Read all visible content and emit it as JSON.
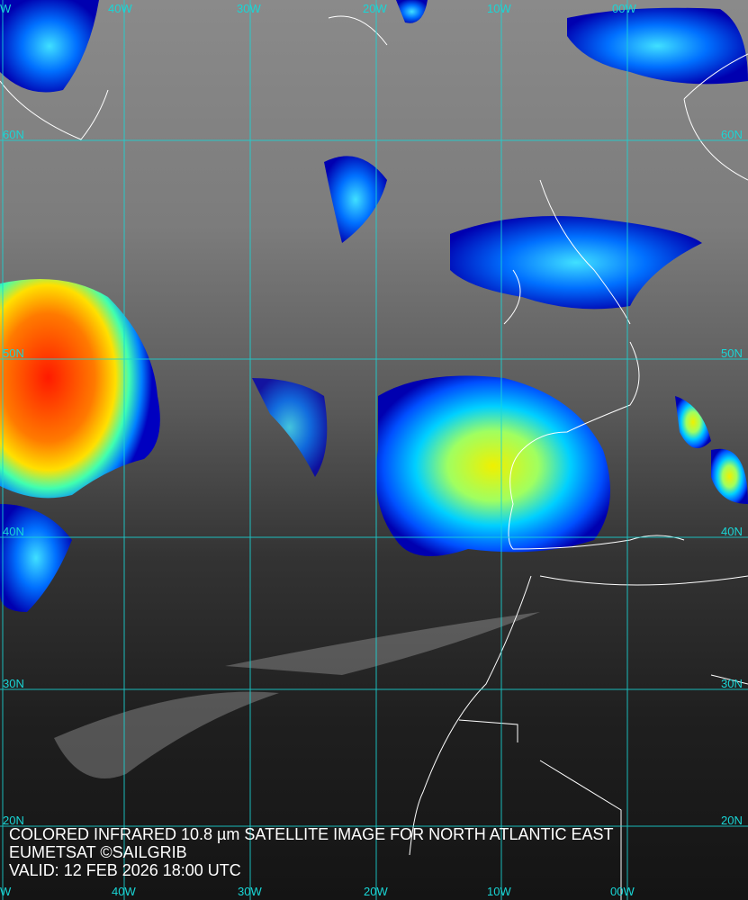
{
  "caption": {
    "line1": "COLORED INFRARED 10.8 µm SATELLITE IMAGE FOR NORTH ATLANTIC EAST",
    "line2": "EUMETSAT ©SAILGRIB",
    "line3": "VALID:  12 FEB 2026 18:00 UTC"
  },
  "grid": {
    "top_labels": [
      "W",
      "40W",
      "30W",
      "20W",
      "10W",
      "00W"
    ],
    "bottom_labels": [
      "W",
      "40W",
      "30W",
      "20W",
      "10W",
      "00W"
    ],
    "left_labels": [
      "60N",
      "50N",
      "40N",
      "30N",
      "20N"
    ],
    "right_labels": [
      "60N",
      "50N",
      "40N",
      "30N",
      "20N"
    ],
    "color": "#19d6d6"
  },
  "colors": {
    "coast": "#ffffff",
    "cold_cloud_top": "#ff2a00",
    "cloud_mid": "#f0f000",
    "cloud_low": "#0000c8"
  }
}
